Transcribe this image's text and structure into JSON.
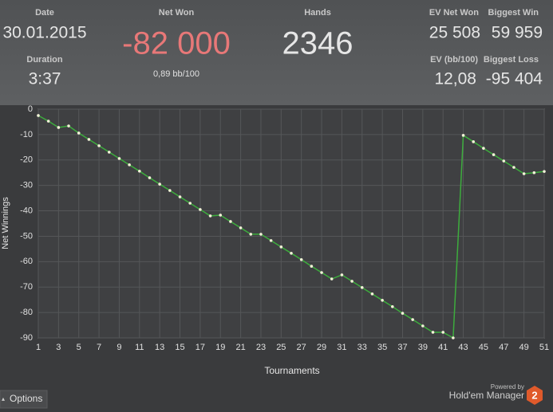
{
  "header": {
    "date_label": "Date",
    "date": "30.01.2015",
    "duration_label": "Duration",
    "duration": "3:37",
    "net_won_label": "Net Won",
    "net_won": "-82 000",
    "net_won_rate": "0,89 bb/100",
    "hands_label": "Hands",
    "hands": "2346",
    "ev_net_won_label": "EV Net Won",
    "ev_net_won": "25 508",
    "biggest_win_label": "Biggest Win",
    "biggest_win": "59 959",
    "ev_bb_label": "EV (bb/100)",
    "ev_bb": "12,08",
    "biggest_loss_label": "Biggest Loss",
    "biggest_loss": "-95 404"
  },
  "chart_data": {
    "type": "line",
    "x_label": "Tournaments",
    "y_label": "Net Winnings",
    "x": [
      1,
      2,
      3,
      4,
      5,
      6,
      7,
      8,
      9,
      10,
      11,
      12,
      13,
      14,
      15,
      16,
      17,
      18,
      19,
      20,
      21,
      22,
      23,
      24,
      25,
      26,
      27,
      28,
      29,
      30,
      31,
      32,
      33,
      34,
      35,
      36,
      37,
      38,
      39,
      40,
      41,
      42,
      43,
      44,
      45,
      46,
      47,
      48,
      49,
      50,
      51
    ],
    "series": [
      {
        "color": "#3dac3d",
        "values": [
          -2.5,
          -4.7,
          -7.2,
          -6.6,
          -9.4,
          -11.9,
          -14.4,
          -16.9,
          -19.4,
          -21.9,
          -24.4,
          -27,
          -29.5,
          -32,
          -34.5,
          -37,
          -39.5,
          -42,
          -41.7,
          -44.2,
          -46.7,
          -49.2,
          -49.2,
          -51.7,
          -54.2,
          -56.7,
          -59.2,
          -61.8,
          -64.3,
          -66.8,
          -65.2,
          -67.7,
          -70.2,
          -72.7,
          -75.2,
          -77.7,
          -80.3,
          -82.8,
          -85.3,
          -87.8,
          -87.8,
          -90,
          -10.3,
          -12.8,
          -15.4,
          -17.9,
          -20.4,
          -22.9,
          -25.4,
          -25,
          -24.5
        ]
      }
    ],
    "xlim": [
      1,
      51
    ],
    "ylim": [
      -90,
      0
    ],
    "xticks": [
      1,
      3,
      5,
      7,
      9,
      11,
      13,
      15,
      17,
      19,
      21,
      23,
      25,
      27,
      29,
      31,
      33,
      35,
      37,
      39,
      41,
      43,
      45,
      47,
      49,
      51
    ],
    "yticks": [
      0,
      -10,
      -20,
      -30,
      -40,
      -50,
      -60,
      -70,
      -80,
      -90
    ],
    "grid": true
  },
  "footer": {
    "options": "Options",
    "powered_by": "Powered by",
    "product": "Hold'em Manager",
    "version": "2"
  }
}
